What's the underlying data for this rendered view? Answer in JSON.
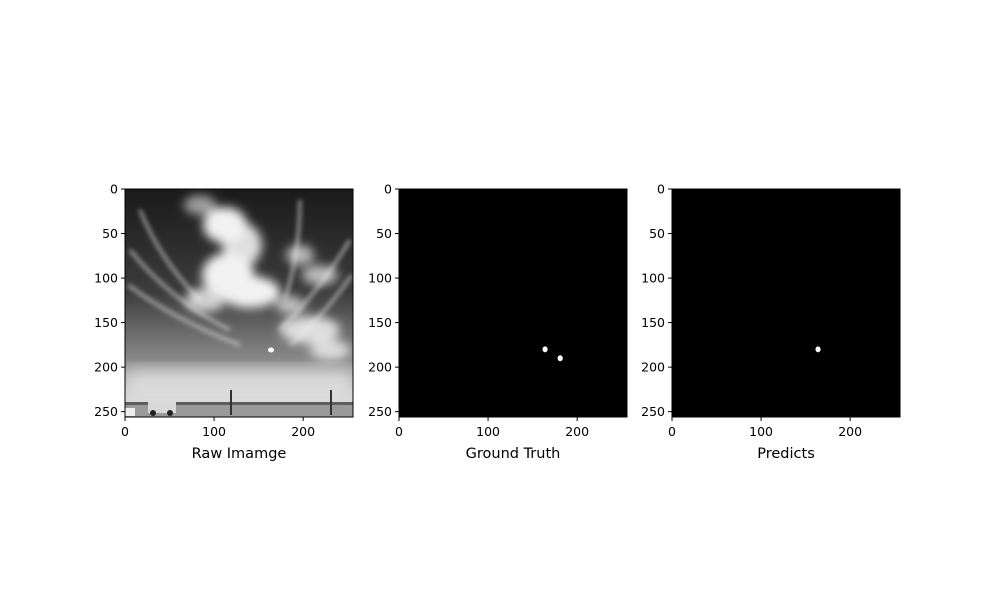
{
  "figure": {
    "background": "#ffffff"
  },
  "chart_data": [
    {
      "type": "image",
      "xlabel": "Raw Imamge",
      "image_kind": "grayscale sky photo with clouds",
      "xlim": [
        0,
        256
      ],
      "ylim": [
        256,
        0
      ],
      "xticks": [
        0,
        100,
        200
      ],
      "yticks": [
        0,
        50,
        100,
        150,
        200,
        250
      ],
      "colors": {
        "background": "#000000",
        "foreground": "#ffffff"
      },
      "blobs": []
    },
    {
      "type": "image",
      "xlabel": "Ground Truth",
      "image_kind": "binary mask",
      "xlim": [
        0,
        256
      ],
      "ylim": [
        256,
        0
      ],
      "xticks": [
        0,
        100,
        200
      ],
      "yticks": [
        0,
        50,
        100,
        150,
        200,
        250
      ],
      "colors": {
        "background": "#000000",
        "foreground": "#ffffff"
      },
      "blobs": [
        {
          "x": 164,
          "y": 180
        },
        {
          "x": 181,
          "y": 190
        }
      ]
    },
    {
      "type": "image",
      "xlabel": "Predicts",
      "image_kind": "binary mask",
      "xlim": [
        0,
        256
      ],
      "ylim": [
        256,
        0
      ],
      "xticks": [
        0,
        100,
        200
      ],
      "yticks": [
        0,
        50,
        100,
        150,
        200,
        250
      ],
      "colors": {
        "background": "#000000",
        "foreground": "#ffffff"
      },
      "blobs": [
        {
          "x": 164,
          "y": 180
        }
      ]
    }
  ]
}
